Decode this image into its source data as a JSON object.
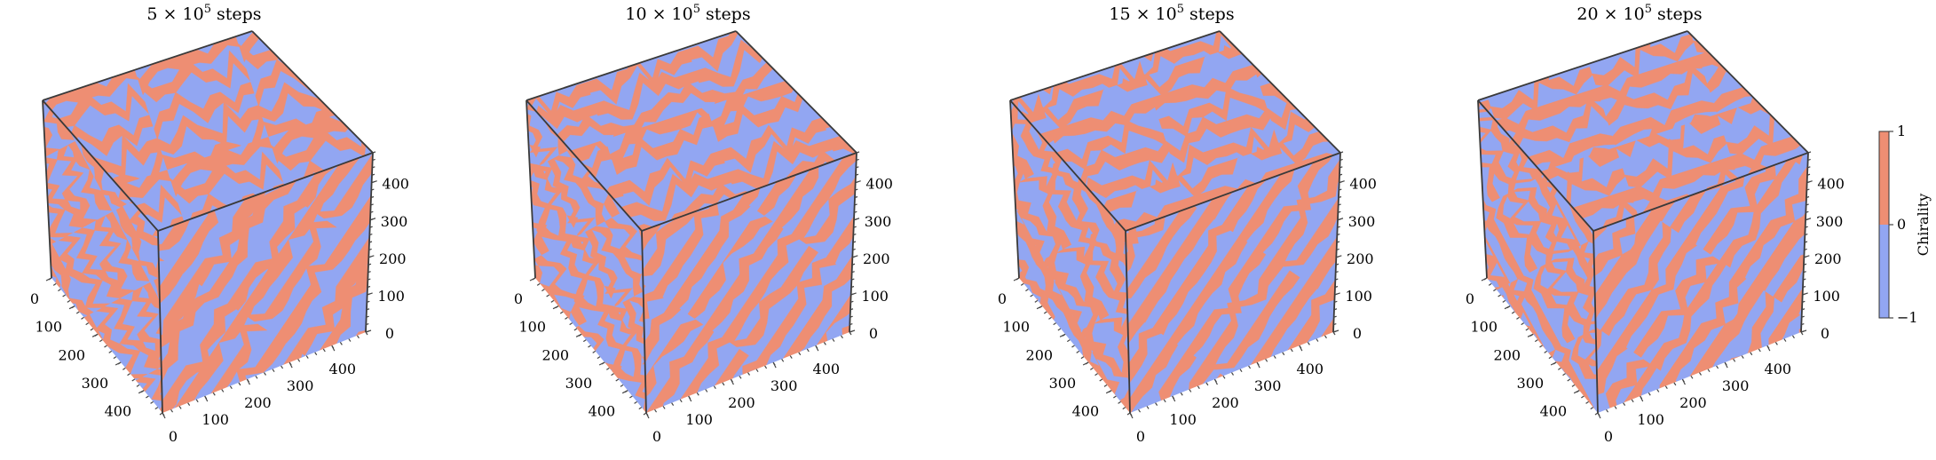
{
  "chart_data": {
    "type": "heatmap",
    "description_kind": "3d-volume-slices",
    "panels": [
      {
        "title": "5 × 10",
        "title_sup": "5",
        "title_suffix": " steps",
        "period": 9,
        "seed": 1
      },
      {
        "title": "10 × 10",
        "title_sup": "5",
        "title_suffix": " steps",
        "period": 12,
        "seed": 2
      },
      {
        "title": "15 × 10",
        "title_sup": "5",
        "title_suffix": " steps",
        "period": 13,
        "seed": 3
      },
      {
        "title": "20 × 10",
        "title_sup": "5",
        "title_suffix": " steps",
        "period": 14,
        "seed": 4
      }
    ],
    "axes": {
      "x_ticks": [
        "0",
        "100",
        "200",
        "300",
        "400"
      ],
      "y_ticks": [
        "0",
        "100",
        "200",
        "300",
        "400"
      ],
      "z_ticks": [
        "0",
        "100",
        "200",
        "300",
        "400"
      ],
      "range": [
        0,
        480
      ]
    },
    "colorbar": {
      "label": "Chirality",
      "ticks": [
        "1",
        "0",
        "−1"
      ],
      "range": [
        -1,
        1
      ]
    },
    "colors": {
      "positive": "#ee8e73",
      "negative": "#92a6f2",
      "edge": "#3a3a3a"
    }
  }
}
